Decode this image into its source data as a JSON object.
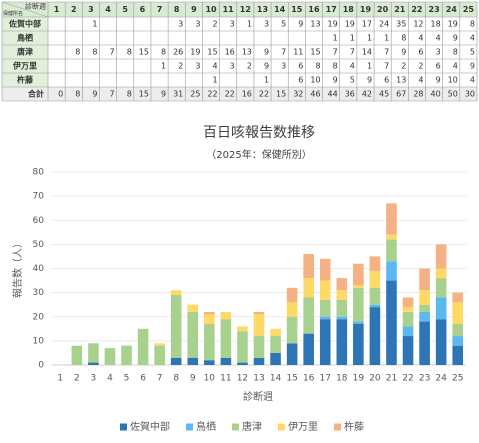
{
  "table": {
    "corner_top": "診断週",
    "corner_bottom": "保健所名",
    "total_label": "合計",
    "totals": [
      0,
      8,
      9,
      7,
      8,
      15,
      9,
      31,
      25,
      22,
      22,
      16,
      22,
      15,
      32,
      46,
      44,
      36,
      42,
      45,
      67,
      28,
      40,
      50,
      30
    ]
  },
  "chart_data": {
    "type": "stacked_bar",
    "title": "百日咳報告数推移",
    "subtitle": "（2025年：保健所別）",
    "x_label": "診断週",
    "y_label": "報告数（人）",
    "categories": [
      "1",
      "2",
      "3",
      "4",
      "5",
      "6",
      "7",
      "8",
      "9",
      "10",
      "11",
      "12",
      "13",
      "14",
      "15",
      "16",
      "17",
      "18",
      "19",
      "20",
      "21",
      "22",
      "23",
      "24",
      "25"
    ],
    "series": [
      {
        "name": "佐賀中部",
        "color": "#2e75b6",
        "values": [
          null,
          null,
          1,
          null,
          null,
          null,
          null,
          3,
          3,
          2,
          3,
          1,
          3,
          5,
          9,
          13,
          19,
          19,
          17,
          24,
          35,
          12,
          18,
          19,
          8
        ]
      },
      {
        "name": "鳥栖",
        "color": "#5bb8f0",
        "values": [
          null,
          null,
          null,
          null,
          null,
          null,
          null,
          null,
          null,
          null,
          null,
          null,
          null,
          null,
          null,
          null,
          1,
          1,
          1,
          1,
          8,
          4,
          4,
          9,
          4
        ]
      },
      {
        "name": "唐津",
        "color": "#a9d18e",
        "values": [
          null,
          8,
          8,
          7,
          8,
          15,
          8,
          26,
          19,
          15,
          16,
          13,
          9,
          7,
          11,
          15,
          7,
          7,
          14,
          7,
          9,
          6,
          3,
          8,
          5
        ]
      },
      {
        "name": "伊万里",
        "color": "#ffd966",
        "values": [
          null,
          null,
          null,
          null,
          null,
          null,
          1,
          2,
          3,
          4,
          3,
          2,
          9,
          3,
          6,
          8,
          8,
          4,
          1,
          7,
          2,
          2,
          6,
          4,
          9
        ]
      },
      {
        "name": "杵藤",
        "color": "#f4b183",
        "values": [
          null,
          null,
          null,
          null,
          null,
          null,
          null,
          null,
          null,
          1,
          null,
          null,
          1,
          null,
          6,
          10,
          9,
          5,
          9,
          6,
          13,
          4,
          9,
          10,
          4
        ]
      }
    ],
    "ylim": [
      0,
      80
    ],
    "yticks": [
      0,
      10,
      20,
      30,
      40,
      50,
      60,
      70,
      80
    ],
    "grid": true,
    "legend": "bottom"
  }
}
